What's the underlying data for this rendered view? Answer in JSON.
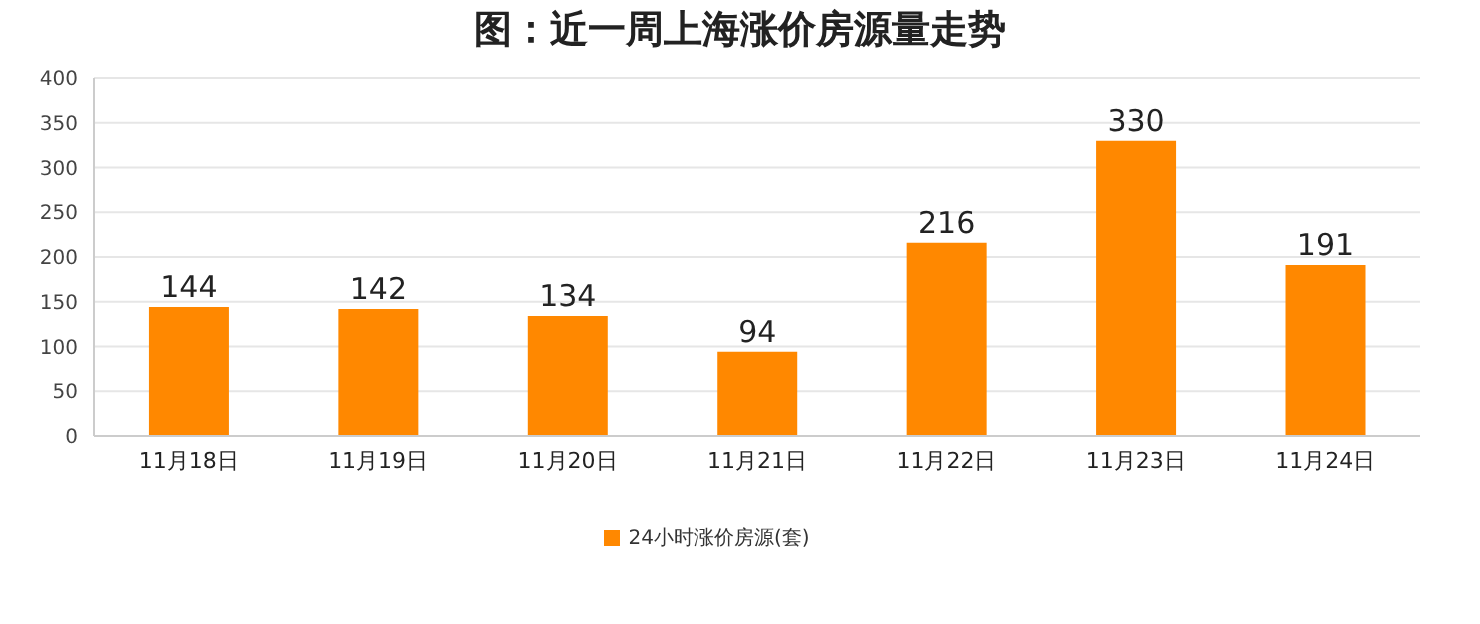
{
  "chart_data": {
    "type": "bar",
    "title": "图：近一周上海涨价房源量走势",
    "categories": [
      "11月18日",
      "11月19日",
      "11月20日",
      "11月21日",
      "11月22日",
      "11月23日",
      "11月24日"
    ],
    "series": [
      {
        "name": "24小时涨价房源(套)",
        "color": "#ff8800",
        "values": [
          144,
          142,
          134,
          94,
          216,
          330,
          191
        ]
      }
    ],
    "ylim": [
      0,
      400
    ],
    "yticks": [
      0,
      50,
      100,
      150,
      200,
      250,
      300,
      350,
      400
    ],
    "grid": "y",
    "legend": "bottom",
    "data_labels": true
  }
}
